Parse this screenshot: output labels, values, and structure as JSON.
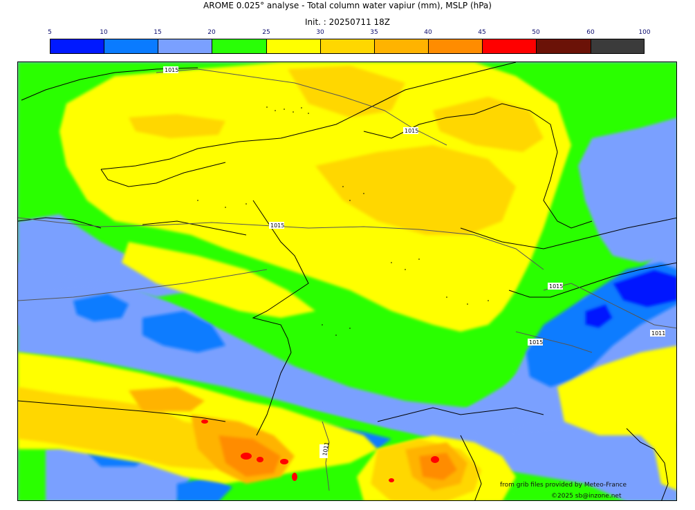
{
  "header": {
    "title": "AROME 0.025° analyse - Total column water vapiur (mm), MSLP (hPa)",
    "init": "Init. : 20250711 18Z"
  },
  "legend": {
    "ticks": [
      "5",
      "10",
      "15",
      "20",
      "25",
      "30",
      "35",
      "40",
      "45",
      "50",
      "60",
      "100"
    ],
    "colors": [
      "#0019ff",
      "#0a7bff",
      "#7aa0ff",
      "#29ff06",
      "#ffff00",
      "#ffd700",
      "#ffb300",
      "#ff8c00",
      "#ff0000",
      "#6b1207",
      "#3b3b3b"
    ]
  },
  "isobars": [
    {
      "label": "1015"
    },
    {
      "label": "1015"
    },
    {
      "label": "1015"
    },
    {
      "label": "1015"
    },
    {
      "label": "1015"
    },
    {
      "label": "1011"
    },
    {
      "label": "1011"
    }
  ],
  "credits": {
    "source": "from grib files provided by Meteo-France",
    "copyright": "©2025 sb@inzone.net"
  }
}
